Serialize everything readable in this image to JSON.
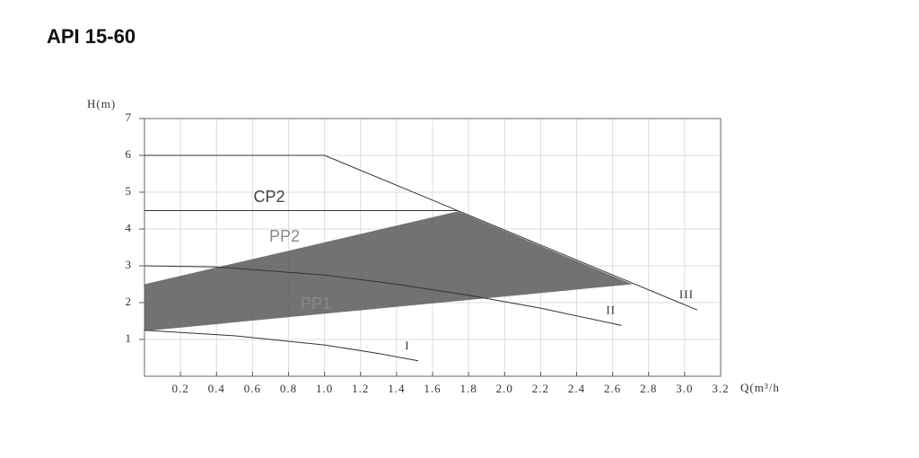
{
  "chart_data": {
    "type": "line",
    "title": "API 15-60",
    "y_label": "H(m)",
    "x_label": "Q(m³/h",
    "xlim": [
      0,
      3.2
    ],
    "ylim": [
      0,
      7
    ],
    "xticks": [
      0.2,
      0.4,
      0.6,
      0.8,
      {
        "value": 1,
        "label": "1.0"
      },
      1.2,
      1.4,
      1.6,
      1.8,
      {
        "value": 2,
        "label": "2.0"
      },
      2.2,
      2.4,
      2.6,
      2.8,
      {
        "value": 3,
        "label": "3.0"
      },
      3.2
    ],
    "yticks": [
      1,
      2,
      3,
      4,
      5,
      6,
      7
    ],
    "grid": true,
    "area": {
      "color": "#595959",
      "x": [
        0,
        1.74,
        2.71,
        0
      ],
      "values": [
        2.5,
        4.48,
        2.5,
        1.23
      ]
    },
    "series": [
      {
        "name": "III",
        "color": "#333333",
        "x": [
          0,
          1.0,
          3.07
        ],
        "values": [
          6,
          6,
          1.8
        ]
      },
      {
        "name": "II",
        "color": "#333333",
        "x": [
          0,
          0.4,
          1.0,
          1.4,
          1.8,
          2.2,
          2.65
        ],
        "values": [
          3,
          2.97,
          2.75,
          2.5,
          2.2,
          1.85,
          1.38
        ]
      },
      {
        "name": "I",
        "color": "#333333",
        "x": [
          0,
          0.5,
          1.0,
          1.3,
          1.52
        ],
        "values": [
          1.25,
          1.1,
          0.85,
          0.62,
          0.42
        ]
      }
    ],
    "reference_line": {
      "x": [
        0,
        1.74
      ],
      "values": [
        4.5,
        4.5
      ],
      "color": "#333333"
    },
    "annotations": [
      "CP2",
      "PP2",
      "PP1"
    ]
  }
}
